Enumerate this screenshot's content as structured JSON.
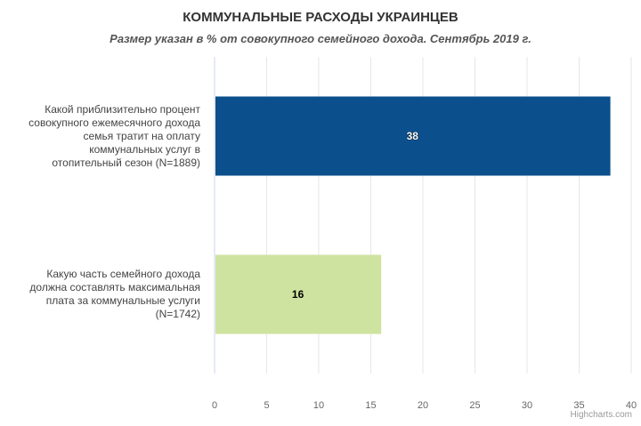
{
  "chart_data": {
    "type": "bar",
    "orientation": "horizontal",
    "title": "КОММУНАЛЬНЫЕ РАСХОДЫ УКРАИНЦЕВ",
    "subtitle": "Размер указан в % от совокупного семейного дохода. Сентябрь 2019 г.",
    "categories": [
      "Какой приблизительно процент совокупного ежемесячного дохода семья тратит на оплату коммунальных услуг в отопительный сезон (N=1889)",
      "Какую часть семейного дохода должна составлять максимальная плата за коммунальные услуги (N=1742)"
    ],
    "category_lines": [
      [
        "Какой приблизительно процент",
        "совокупного ежемесячного дохода",
        "семья тратит на оплату",
        "коммунальных услуг в",
        "отопительный сезон (N=1889)"
      ],
      [
        "Какую часть семейного дохода",
        "должна составлять максимальная",
        "плата за коммунальные услуги",
        "(N=1742)"
      ]
    ],
    "values": [
      38,
      16
    ],
    "data_labels": [
      "38",
      "16"
    ],
    "colors": [
      "#0b4f8c",
      "#cfe3a0"
    ],
    "xlim": [
      0,
      40
    ],
    "x_ticks": [
      "0",
      "5",
      "10",
      "15",
      "20",
      "25",
      "30",
      "35",
      "40"
    ],
    "grid": true,
    "legend": "none"
  },
  "credits": "Highcharts.com"
}
